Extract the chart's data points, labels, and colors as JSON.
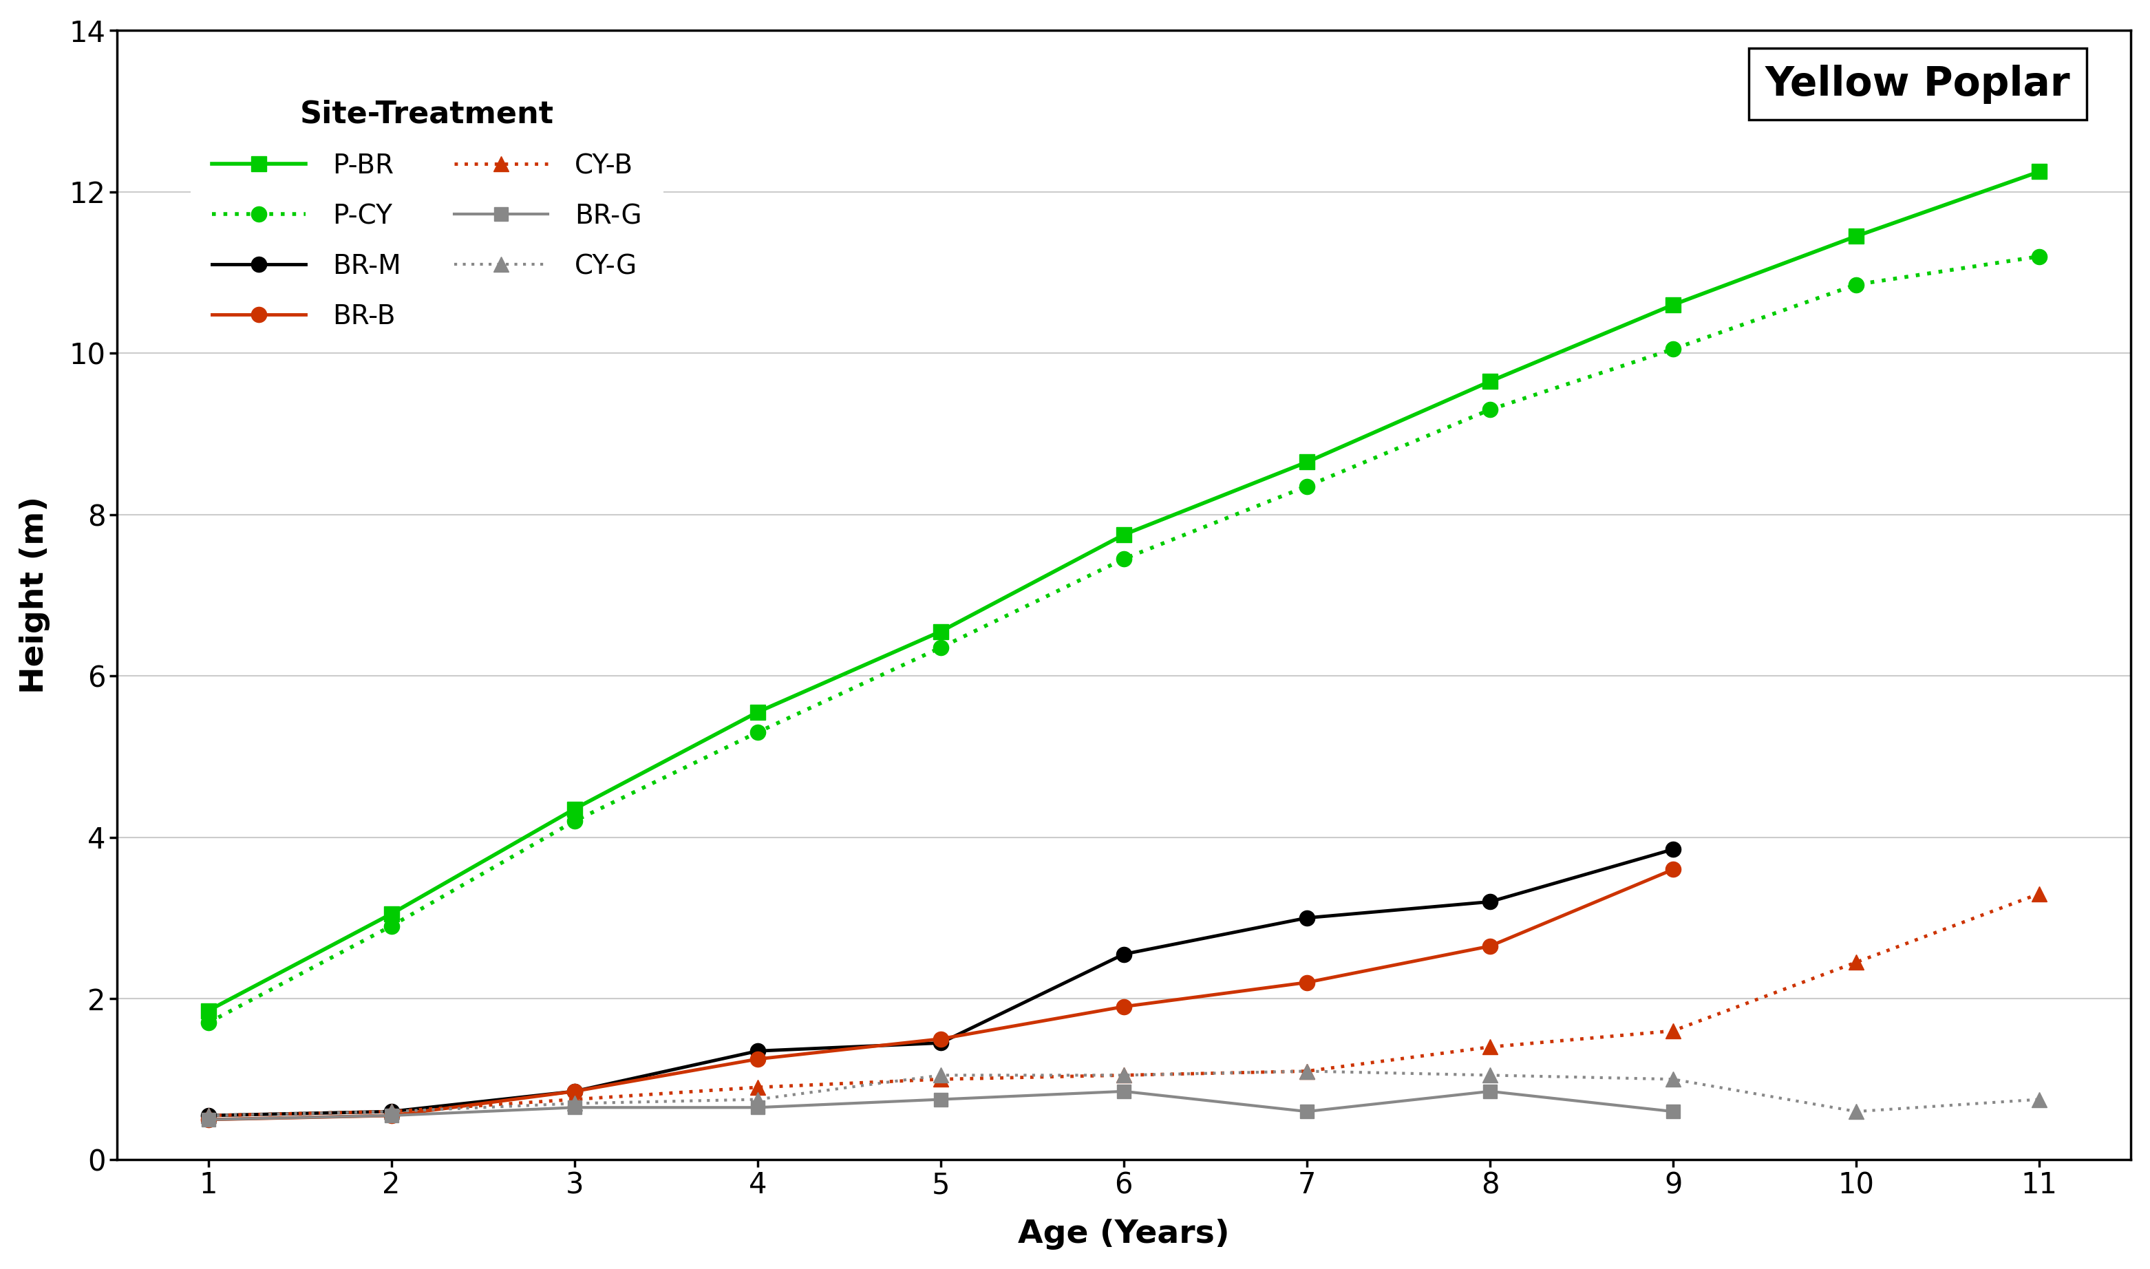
{
  "title": "Yellow Poplar",
  "xlabel": "Age (Years)",
  "ylabel": "Height (m)",
  "xlim": [
    0.5,
    11.5
  ],
  "ylim": [
    0,
    14
  ],
  "yticks": [
    0,
    2,
    4,
    6,
    8,
    10,
    12,
    14
  ],
  "xticks": [
    1,
    2,
    3,
    4,
    5,
    6,
    7,
    8,
    9,
    10,
    11
  ],
  "legend_title": "Site-Treatment",
  "series": [
    {
      "label": "P-BR",
      "color": "#00CC00",
      "linestyle": "solid",
      "marker": "s",
      "markersize": 16,
      "linewidth": 4.0,
      "x": [
        1,
        2,
        3,
        4,
        5,
        6,
        7,
        8,
        9,
        10,
        11
      ],
      "y": [
        1.85,
        3.05,
        4.35,
        5.55,
        6.55,
        7.75,
        8.65,
        9.65,
        10.6,
        11.45,
        12.25
      ]
    },
    {
      "label": "P-CY",
      "color": "#00CC00",
      "linestyle": "dotted",
      "marker": "o",
      "markersize": 16,
      "linewidth": 4.0,
      "x": [
        1,
        2,
        3,
        4,
        5,
        6,
        7,
        8,
        9,
        10,
        11
      ],
      "y": [
        1.7,
        2.9,
        4.2,
        5.3,
        6.35,
        7.45,
        8.35,
        9.3,
        10.05,
        10.85,
        11.2
      ]
    },
    {
      "label": "BR-M",
      "color": "#000000",
      "linestyle": "solid",
      "marker": "o",
      "markersize": 16,
      "linewidth": 3.5,
      "x": [
        1,
        2,
        3,
        4,
        5,
        6,
        7,
        8,
        9
      ],
      "y": [
        0.55,
        0.6,
        0.85,
        1.35,
        1.45,
        2.55,
        3.0,
        3.2,
        3.85
      ]
    },
    {
      "label": "BR-B",
      "color": "#CC3300",
      "linestyle": "solid",
      "marker": "o",
      "markersize": 16,
      "linewidth": 3.5,
      "x": [
        1,
        2,
        3,
        4,
        5,
        6,
        7,
        8,
        9
      ],
      "y": [
        0.5,
        0.55,
        0.85,
        1.25,
        1.5,
        1.9,
        2.2,
        2.65,
        3.6
      ]
    },
    {
      "label": "CY-B",
      "color": "#CC3300",
      "linestyle": "dotted",
      "marker": "^",
      "markersize": 16,
      "linewidth": 3.5,
      "x": [
        1,
        2,
        3,
        4,
        5,
        6,
        7,
        8,
        9,
        10,
        11
      ],
      "y": [
        0.55,
        0.6,
        0.75,
        0.9,
        1.0,
        1.05,
        1.1,
        1.4,
        1.6,
        2.45,
        3.3
      ]
    },
    {
      "label": "BR-G",
      "color": "#888888",
      "linestyle": "solid",
      "marker": "s",
      "markersize": 14,
      "linewidth": 3.0,
      "x": [
        1,
        2,
        3,
        4,
        5,
        6,
        7,
        8,
        9
      ],
      "y": [
        0.5,
        0.55,
        0.65,
        0.65,
        0.75,
        0.85,
        0.6,
        0.85,
        0.6
      ]
    },
    {
      "label": "CY-G",
      "color": "#888888",
      "linestyle": "dotted",
      "marker": "^",
      "markersize": 16,
      "linewidth": 3.0,
      "x": [
        1,
        2,
        3,
        4,
        5,
        6,
        7,
        8,
        9,
        10,
        11
      ],
      "y": [
        0.55,
        0.6,
        0.7,
        0.75,
        1.05,
        1.05,
        1.1,
        1.05,
        1.0,
        0.6,
        0.75
      ]
    }
  ],
  "background_color": "#ffffff",
  "grid_color": "#cccccc",
  "title_fontsize": 42,
  "axis_label_fontsize": 34,
  "tick_fontsize": 30,
  "legend_fontsize": 28,
  "legend_title_fontsize": 32
}
